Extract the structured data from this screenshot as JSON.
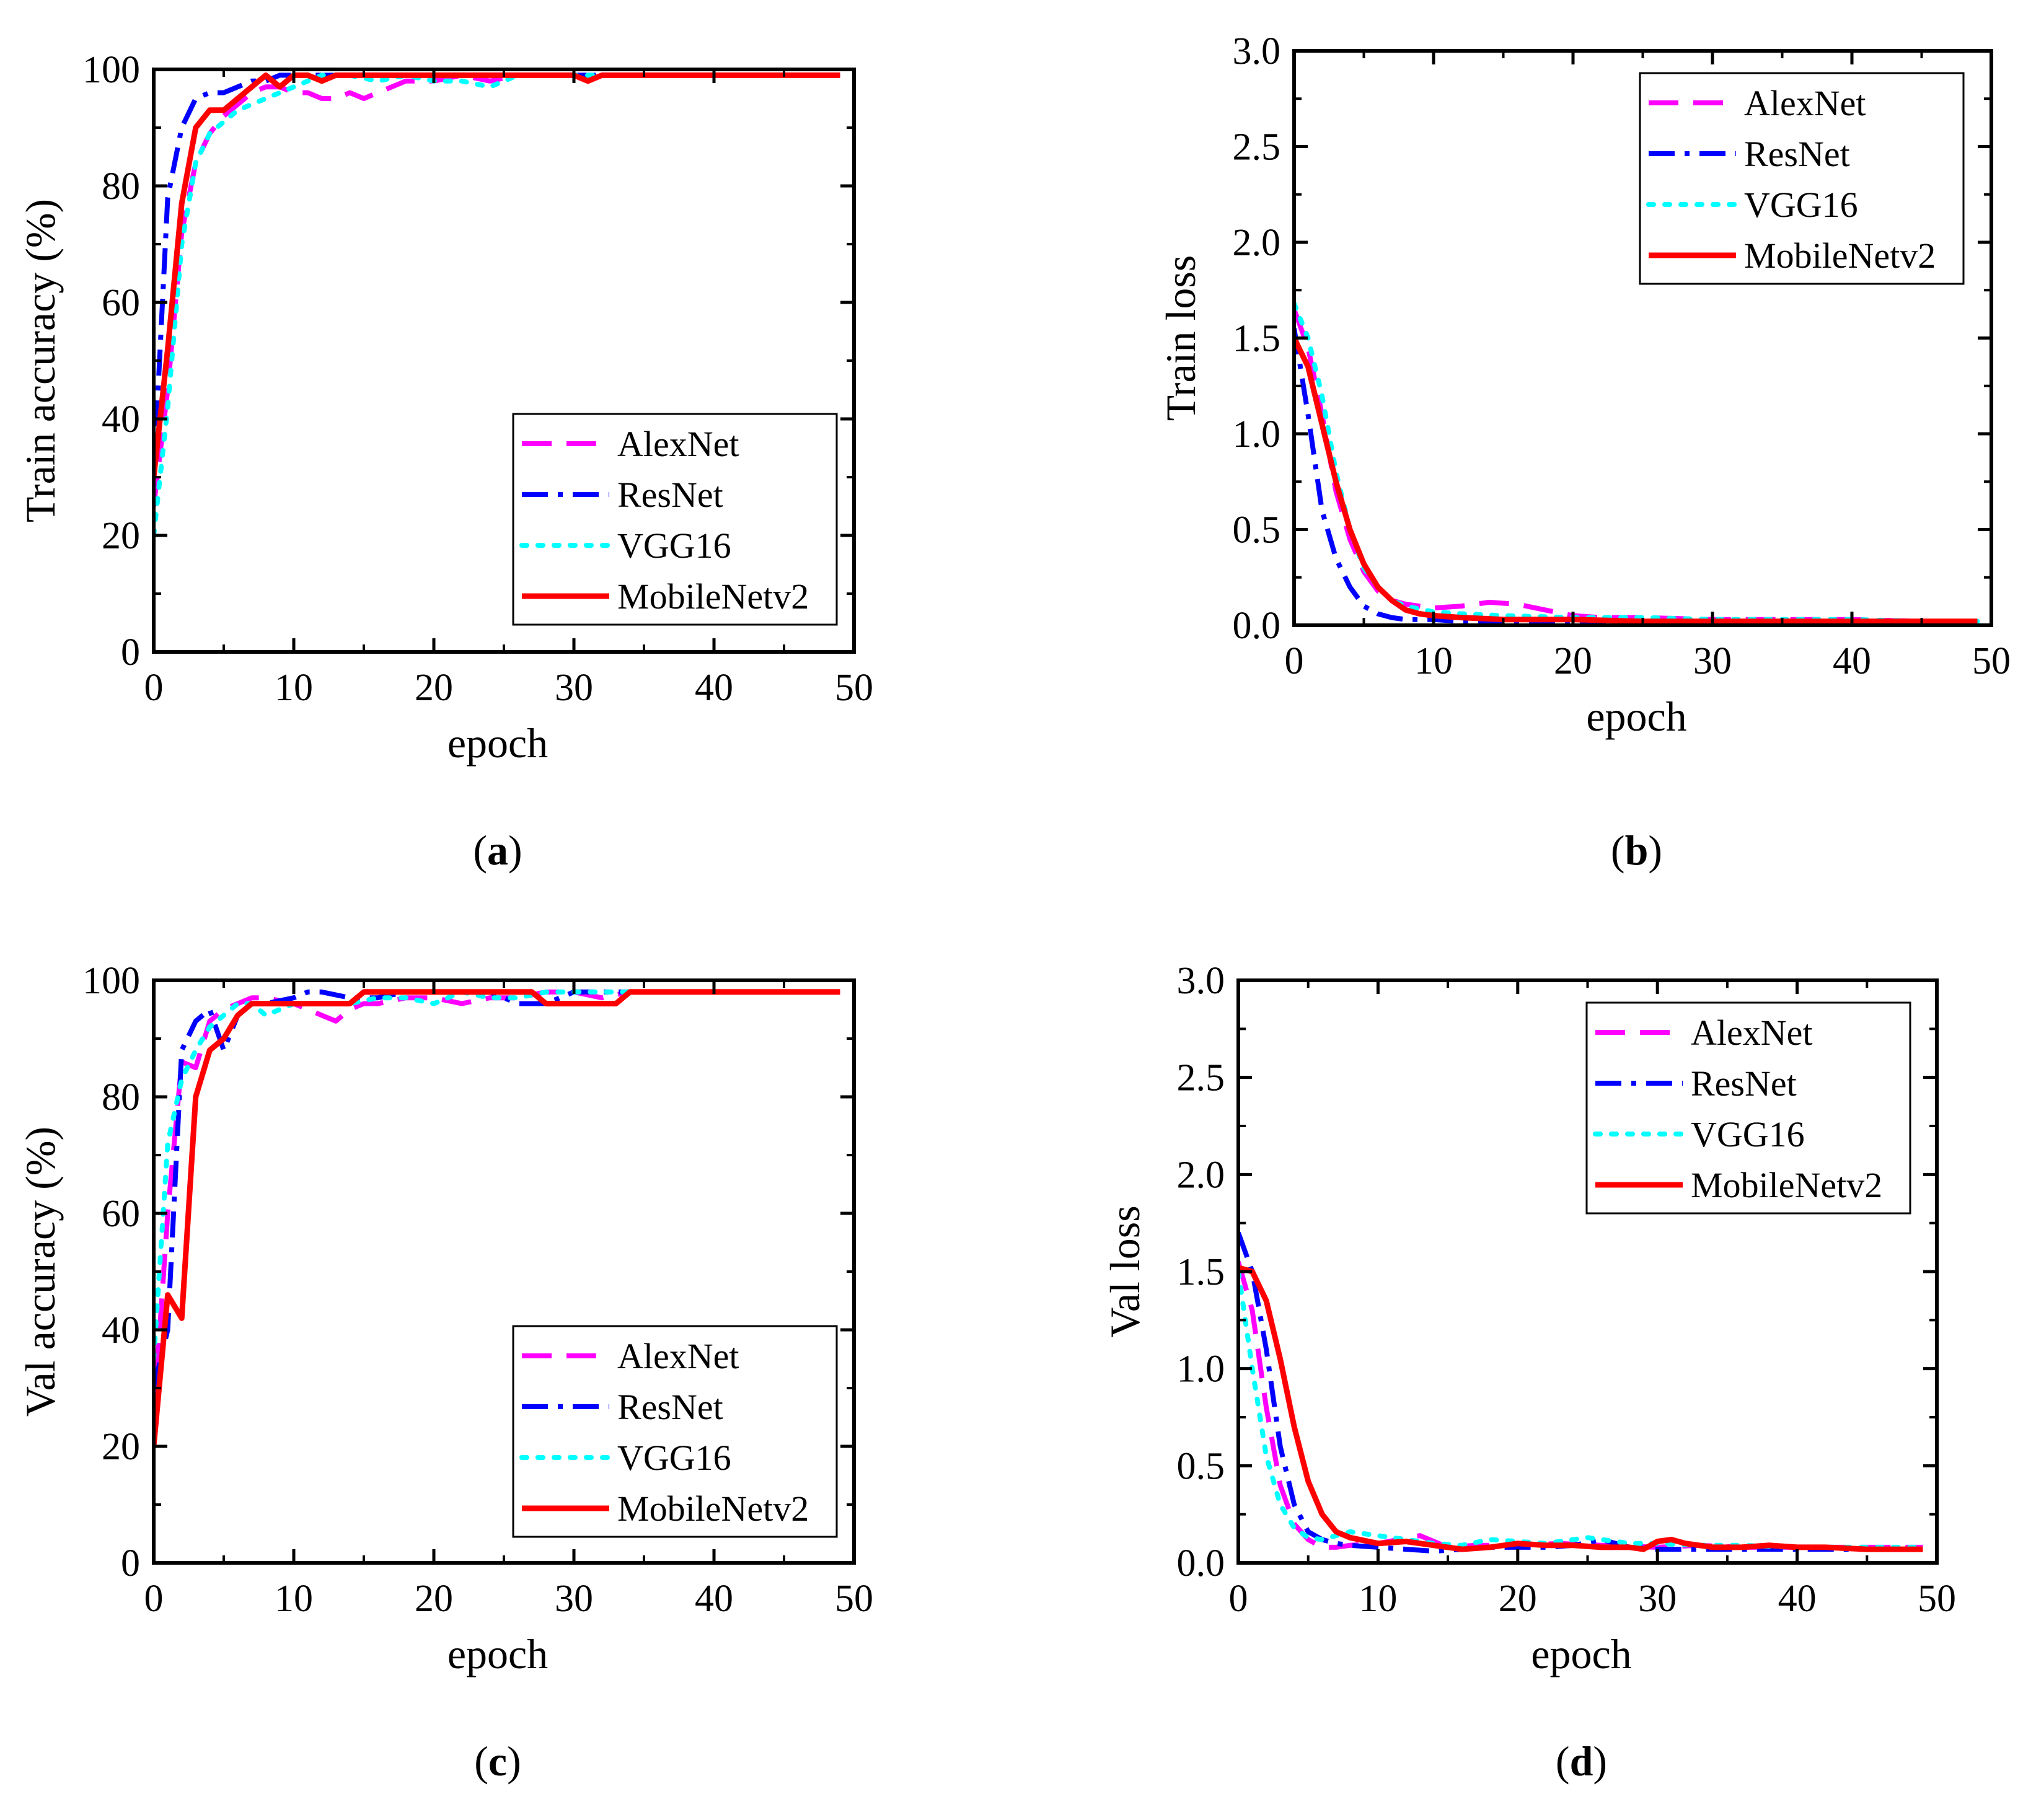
{
  "figure": {
    "legend_entries": [
      {
        "name": "AlexNet",
        "color": "#ff00ff",
        "dash": "dash"
      },
      {
        "name": "ResNet",
        "color": "#0000ff",
        "dash": "dashdot"
      },
      {
        "name": "VGG16",
        "color": "#00ffff",
        "dash": "dot"
      },
      {
        "name": "MobileNetv2",
        "color": "#ff0000",
        "dash": "solid"
      }
    ]
  },
  "chart_data": [
    {
      "id": "a",
      "type": "line",
      "caption_letter": "a",
      "xlabel": "epoch",
      "ylabel": "Train accuracy (%)",
      "xlim": [
        0,
        50
      ],
      "ylim": [
        0,
        100
      ],
      "xticks": [
        "0",
        "10",
        "20",
        "30",
        "40",
        "50"
      ],
      "yticks": [
        "0",
        "20",
        "40",
        "60",
        "80",
        "100"
      ],
      "legend_position": "bottom-right",
      "series": [
        {
          "name": "AlexNet",
          "x": [
            0,
            1,
            2,
            3,
            4,
            5,
            6,
            7,
            8,
            9,
            10,
            11,
            12,
            13,
            14,
            15,
            16,
            17,
            18,
            20,
            22,
            24,
            26,
            28,
            30,
            32,
            34,
            36,
            38,
            40,
            42,
            44,
            46,
            48,
            49
          ],
          "y": [
            25,
            45,
            72,
            84,
            89,
            92,
            94,
            96,
            97,
            97,
            96,
            96,
            95,
            95,
            96,
            95,
            96,
            97,
            98,
            98,
            99,
            98,
            99,
            99,
            99,
            99,
            99,
            99,
            99,
            99,
            99,
            99,
            99,
            99,
            99
          ]
        },
        {
          "name": "ResNet",
          "x": [
            0,
            1,
            2,
            3,
            4,
            5,
            6,
            7,
            8,
            9,
            10,
            11,
            12,
            14,
            16,
            18,
            20,
            25,
            30,
            35,
            40,
            45,
            49
          ],
          "y": [
            30,
            78,
            90,
            95,
            96,
            96,
            97,
            98,
            98,
            99,
            99,
            99,
            99,
            99,
            99,
            99,
            99,
            99,
            99,
            99,
            99,
            99,
            99
          ]
        },
        {
          "name": "VGG16",
          "x": [
            0,
            1,
            2,
            3,
            4,
            5,
            6,
            7,
            8,
            9,
            10,
            11,
            12,
            14,
            16,
            18,
            20,
            22,
            24,
            26,
            28,
            30,
            35,
            40,
            45,
            49
          ],
          "y": [
            20,
            42,
            70,
            84,
            89,
            91,
            93,
            94,
            95,
            96,
            97,
            98,
            99,
            99,
            98,
            99,
            98,
            98,
            97,
            99,
            99,
            99,
            99,
            99,
            99,
            99
          ]
        },
        {
          "name": "MobileNetv2",
          "x": [
            0,
            1,
            2,
            3,
            4,
            5,
            6,
            7,
            8,
            9,
            10,
            11,
            12,
            13,
            14,
            16,
            18,
            20,
            22,
            24,
            26,
            28,
            30,
            31,
            32,
            34,
            36,
            38,
            40,
            42,
            44,
            46,
            48,
            49
          ],
          "y": [
            30,
            52,
            77,
            90,
            93,
            93,
            95,
            97,
            99,
            97,
            99,
            99,
            98,
            99,
            99,
            99,
            99,
            99,
            99,
            99,
            99,
            99,
            99,
            98,
            99,
            99,
            99,
            99,
            99,
            99,
            99,
            99,
            99,
            99
          ]
        }
      ]
    },
    {
      "id": "b",
      "type": "line",
      "caption_letter": "b",
      "xlabel": "epoch",
      "ylabel": "Train loss",
      "xlim": [
        0,
        50
      ],
      "ylim": [
        0,
        3.0
      ],
      "xticks": [
        "0",
        "10",
        "20",
        "30",
        "40",
        "50"
      ],
      "yticks": [
        "0.0",
        "0.5",
        "1.0",
        "1.5",
        "2.0",
        "2.5",
        "3.0"
      ],
      "legend_position": "top-right",
      "series": [
        {
          "name": "AlexNet",
          "x": [
            0,
            1,
            2,
            3,
            4,
            5,
            6,
            7,
            8,
            10,
            12,
            14,
            16,
            18,
            20,
            22,
            25,
            30,
            35,
            40,
            45,
            49
          ],
          "y": [
            1.65,
            1.45,
            1.1,
            0.7,
            0.45,
            0.28,
            0.18,
            0.13,
            0.11,
            0.09,
            0.1,
            0.12,
            0.11,
            0.08,
            0.05,
            0.04,
            0.04,
            0.03,
            0.03,
            0.03,
            0.02,
            0.02
          ]
        },
        {
          "name": "ResNet",
          "x": [
            0,
            1,
            2,
            3,
            4,
            5,
            6,
            7,
            8,
            10,
            12,
            15,
            20,
            25,
            30,
            35,
            40,
            45,
            49
          ],
          "y": [
            1.55,
            1.1,
            0.6,
            0.35,
            0.2,
            0.1,
            0.06,
            0.04,
            0.03,
            0.03,
            0.02,
            0.02,
            0.02,
            0.02,
            0.02,
            0.02,
            0.02,
            0.02,
            0.02
          ]
        },
        {
          "name": "VGG16",
          "x": [
            0,
            1,
            2,
            3,
            4,
            5,
            6,
            7,
            8,
            10,
            12,
            15,
            20,
            25,
            30,
            35,
            40,
            45,
            49
          ],
          "y": [
            1.68,
            1.5,
            1.2,
            0.8,
            0.5,
            0.3,
            0.2,
            0.13,
            0.1,
            0.07,
            0.06,
            0.05,
            0.04,
            0.04,
            0.03,
            0.03,
            0.03,
            0.02,
            0.02
          ]
        },
        {
          "name": "MobileNetv2",
          "x": [
            0,
            1,
            2,
            3,
            4,
            5,
            6,
            7,
            8,
            9,
            10,
            12,
            15,
            20,
            25,
            30,
            35,
            40,
            45,
            49
          ],
          "y": [
            1.5,
            1.35,
            1.05,
            0.75,
            0.5,
            0.32,
            0.2,
            0.13,
            0.08,
            0.06,
            0.05,
            0.04,
            0.03,
            0.03,
            0.02,
            0.02,
            0.02,
            0.02,
            0.02,
            0.02
          ]
        }
      ]
    },
    {
      "id": "c",
      "type": "line",
      "caption_letter": "c",
      "xlabel": "epoch",
      "ylabel": "Val accuracy (%)",
      "xlim": [
        0,
        50
      ],
      "ylim": [
        0,
        100
      ],
      "xticks": [
        "0",
        "10",
        "20",
        "30",
        "40",
        "50"
      ],
      "yticks": [
        "0",
        "20",
        "40",
        "60",
        "80",
        "100"
      ],
      "legend_position": "bottom-right",
      "series": [
        {
          "name": "AlexNet",
          "x": [
            0,
            1,
            2,
            3,
            4,
            5,
            6,
            7,
            8,
            10,
            12,
            13,
            14,
            15,
            16,
            18,
            20,
            22,
            24,
            26,
            28,
            30,
            32,
            34,
            36,
            40,
            45,
            49
          ],
          "y": [
            25,
            60,
            86,
            85,
            93,
            95,
            96,
            97,
            97,
            96,
            94,
            93,
            95,
            96,
            96,
            97,
            97,
            96,
            97,
            97,
            98,
            98,
            97,
            98,
            98,
            98,
            98,
            98
          ]
        },
        {
          "name": "ResNet",
          "x": [
            0,
            1,
            2,
            3,
            4,
            5,
            6,
            7,
            8,
            10,
            11,
            12,
            14,
            16,
            18,
            20,
            22,
            24,
            26,
            28,
            30,
            32,
            34,
            36,
            40,
            45,
            49
          ],
          "y": [
            30,
            40,
            88,
            93,
            95,
            88,
            94,
            96,
            96,
            97,
            98,
            98,
            97,
            97,
            98,
            98,
            98,
            98,
            96,
            96,
            98,
            98,
            98,
            98,
            98,
            98,
            98
          ]
        },
        {
          "name": "VGG16",
          "x": [
            0,
            1,
            2,
            3,
            4,
            5,
            6,
            7,
            8,
            9,
            10,
            12,
            14,
            16,
            18,
            20,
            22,
            24,
            26,
            28,
            30,
            32,
            34,
            36,
            40,
            45,
            49
          ],
          "y": [
            35,
            72,
            83,
            88,
            92,
            94,
            96,
            96,
            94,
            95,
            96,
            96,
            96,
            97,
            97,
            96,
            98,
            97,
            97,
            98,
            98,
            98,
            98,
            98,
            98,
            98,
            98
          ]
        },
        {
          "name": "MobileNetv2",
          "x": [
            0,
            1,
            2,
            3,
            4,
            5,
            6,
            7,
            8,
            10,
            12,
            14,
            15,
            16,
            18,
            20,
            22,
            24,
            26,
            27,
            28,
            30,
            32,
            33,
            34,
            36,
            40,
            45,
            49
          ],
          "y": [
            20,
            46,
            42,
            80,
            88,
            90,
            94,
            96,
            96,
            96,
            96,
            96,
            98,
            98,
            98,
            98,
            98,
            98,
            98,
            98,
            96,
            96,
            96,
            96,
            98,
            98,
            98,
            98,
            98
          ]
        }
      ]
    },
    {
      "id": "d",
      "type": "line",
      "caption_letter": "d",
      "xlabel": "epoch",
      "ylabel": "Val loss",
      "xlim": [
        0,
        50
      ],
      "ylim": [
        0,
        3.0
      ],
      "xticks": [
        "0",
        "10",
        "20",
        "30",
        "40",
        "50"
      ],
      "yticks": [
        "0.0",
        "0.5",
        "1.0",
        "1.5",
        "2.0",
        "2.5",
        "3.0"
      ],
      "legend_position": "top-right",
      "series": [
        {
          "name": "AlexNet",
          "x": [
            0,
            1,
            2,
            3,
            4,
            5,
            6,
            7,
            8,
            10,
            13,
            15,
            17,
            20,
            23,
            26,
            30,
            33,
            36,
            40,
            45,
            49
          ],
          "y": [
            1.55,
            1.3,
            0.8,
            0.4,
            0.2,
            0.12,
            0.08,
            0.08,
            0.09,
            0.1,
            0.14,
            0.08,
            0.09,
            0.09,
            0.1,
            0.09,
            0.08,
            0.09,
            0.08,
            0.08,
            0.08,
            0.08
          ]
        },
        {
          "name": "ResNet",
          "x": [
            0,
            1,
            2,
            3,
            4,
            5,
            6,
            7,
            8,
            10,
            12,
            14,
            16,
            18,
            20,
            22,
            24,
            26,
            28,
            30,
            32,
            35,
            40,
            45,
            49
          ],
          "y": [
            1.7,
            1.5,
            1.1,
            0.6,
            0.3,
            0.16,
            0.12,
            0.1,
            0.09,
            0.08,
            0.07,
            0.06,
            0.07,
            0.08,
            0.08,
            0.08,
            0.09,
            0.12,
            0.08,
            0.07,
            0.07,
            0.07,
            0.07,
            0.07,
            0.07
          ]
        },
        {
          "name": "VGG16",
          "x": [
            0,
            1,
            2,
            3,
            4,
            5,
            6,
            7,
            8,
            10,
            12,
            14,
            16,
            18,
            20,
            22,
            25,
            28,
            30,
            33,
            36,
            40,
            45,
            49
          ],
          "y": [
            1.5,
            1.0,
            0.55,
            0.3,
            0.18,
            0.13,
            0.12,
            0.14,
            0.16,
            0.14,
            0.12,
            0.1,
            0.09,
            0.12,
            0.11,
            0.1,
            0.13,
            0.1,
            0.1,
            0.09,
            0.09,
            0.08,
            0.08,
            0.08
          ]
        },
        {
          "name": "MobileNetv2",
          "x": [
            0,
            1,
            2,
            3,
            4,
            5,
            6,
            7,
            8,
            10,
            12,
            14,
            16,
            18,
            20,
            22,
            24,
            26,
            28,
            29,
            30,
            31,
            32,
            34,
            36,
            38,
            40,
            42,
            45,
            49
          ],
          "y": [
            1.52,
            1.5,
            1.35,
            1.05,
            0.7,
            0.42,
            0.25,
            0.16,
            0.13,
            0.1,
            0.11,
            0.09,
            0.07,
            0.08,
            0.1,
            0.09,
            0.09,
            0.08,
            0.08,
            0.07,
            0.11,
            0.12,
            0.1,
            0.08,
            0.08,
            0.09,
            0.08,
            0.08,
            0.07,
            0.07
          ]
        }
      ]
    }
  ]
}
